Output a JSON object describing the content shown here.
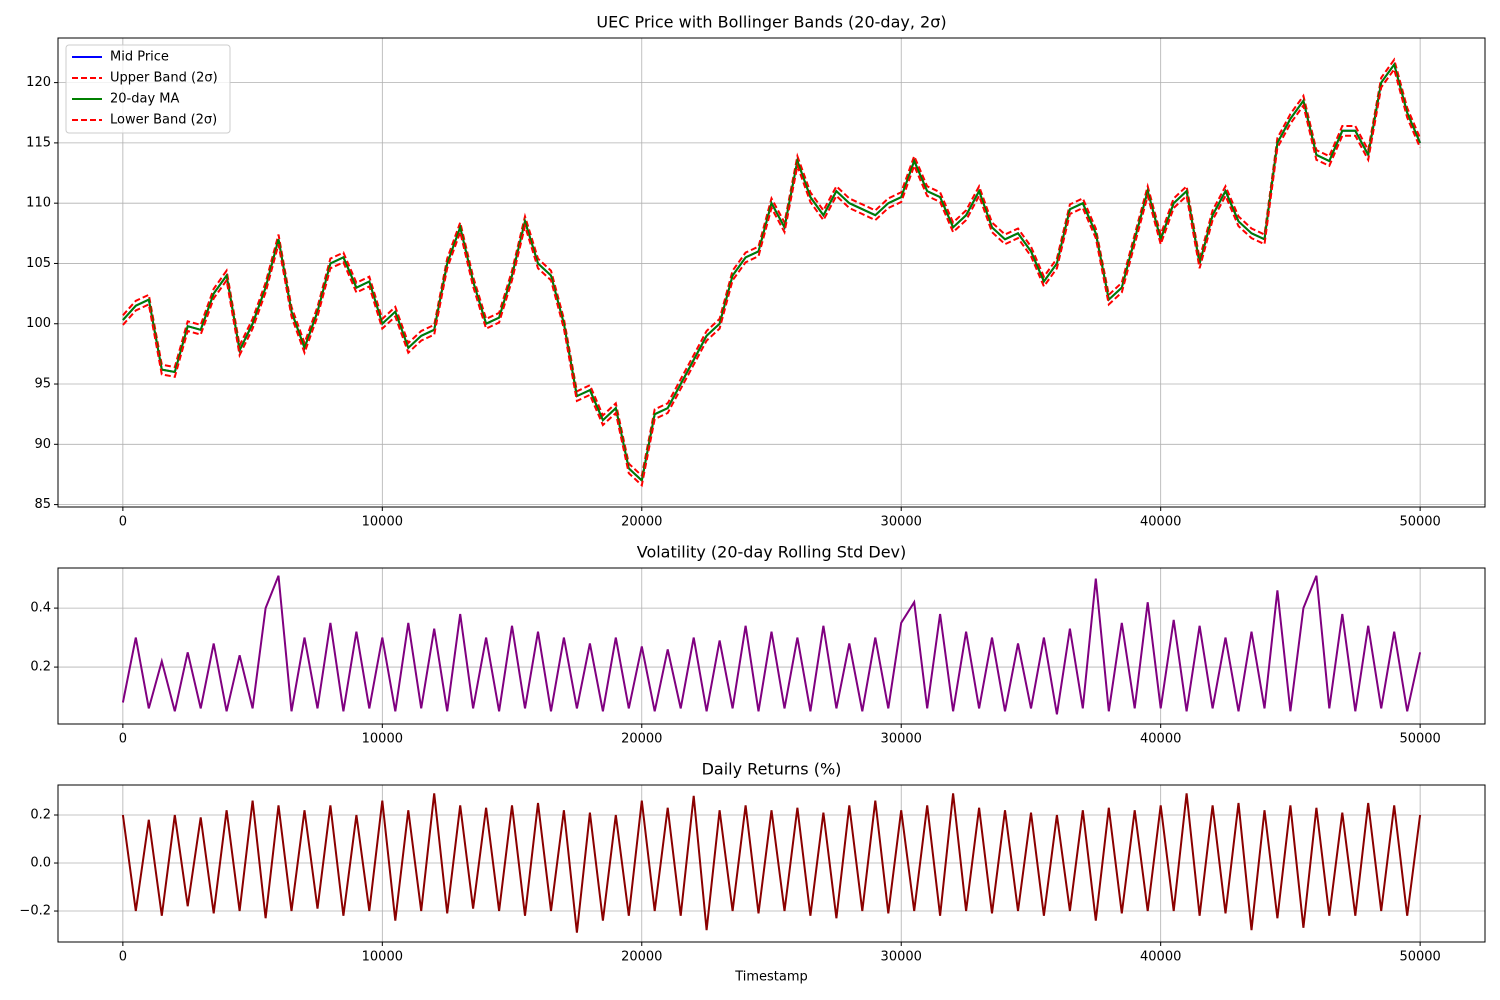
{
  "chart_data": [
    {
      "type": "line",
      "title": "UEC Price with Bollinger Bands (20-day, 2σ)",
      "x": [
        0,
        500,
        1000,
        1500,
        2000,
        2500,
        3000,
        3500,
        4000,
        4500,
        5000,
        5500,
        6000,
        6500,
        7000,
        7500,
        8000,
        8500,
        9000,
        9500,
        10000,
        10500,
        11000,
        11500,
        12000,
        12500,
        13000,
        13500,
        14000,
        14500,
        15000,
        15500,
        16000,
        16500,
        17000,
        17500,
        18000,
        18500,
        19000,
        19500,
        20000,
        20500,
        21000,
        21500,
        22000,
        22500,
        23000,
        23500,
        24000,
        24500,
        25000,
        25500,
        26000,
        26500,
        27000,
        27500,
        28000,
        28500,
        29000,
        29500,
        30000,
        30500,
        31000,
        31500,
        32000,
        32500,
        33000,
        33500,
        34000,
        34500,
        35000,
        35500,
        36000,
        36500,
        37000,
        37500,
        38000,
        38500,
        39000,
        39500,
        40000,
        40500,
        41000,
        41500,
        42000,
        42500,
        43000,
        43500,
        44000,
        44500,
        45000,
        45500,
        46000,
        46500,
        47000,
        47500,
        48000,
        48500,
        49000,
        49500,
        50000
      ],
      "series": [
        {
          "name": "Mid Price",
          "color": "#0000ff",
          "linestyle": "solid",
          "values": [
            100.3,
            101.5,
            102,
            96.2,
            96,
            99.8,
            99.5,
            102.5,
            104,
            97.8,
            100,
            103,
            107,
            101,
            98,
            101,
            105,
            105.5,
            103,
            103.5,
            100,
            101,
            98,
            99,
            99.5,
            105,
            108,
            103.5,
            100,
            100.5,
            104,
            108.5,
            105,
            104,
            100,
            94,
            94.5,
            92,
            93,
            88,
            87,
            92.5,
            93,
            95,
            97,
            99,
            100,
            104,
            105.5,
            106,
            110,
            108,
            113.5,
            110.5,
            109,
            111,
            110,
            109.5,
            109,
            110,
            110.5,
            113.5,
            111,
            110.5,
            108,
            109,
            111,
            108,
            107,
            107.5,
            106,
            103.5,
            105,
            109.5,
            110,
            107.5,
            102,
            103,
            107,
            111,
            107,
            110,
            111,
            105,
            109,
            111,
            108.5,
            107.5,
            107,
            115,
            117,
            118.5,
            114,
            113.5,
            116,
            116,
            114,
            120,
            121.5,
            117.5,
            115
          ]
        },
        {
          "name": "Upper Band (2σ)",
          "color": "#ff0000",
          "linestyle": "dashed",
          "values": [
            100.7,
            101.9,
            102.4,
            96.6,
            96.4,
            100.2,
            99.9,
            102.9,
            104.4,
            98.2,
            100.4,
            103.4,
            107.4,
            101.4,
            98.4,
            101.4,
            105.4,
            105.9,
            103.4,
            103.9,
            100.4,
            101.4,
            98.4,
            99.4,
            99.9,
            105.4,
            108.4,
            103.9,
            100.4,
            100.9,
            104.4,
            108.9,
            105.4,
            104.4,
            100.4,
            94.4,
            94.9,
            92.4,
            93.4,
            88.4,
            87.4,
            92.9,
            93.4,
            95.4,
            97.4,
            99.4,
            100.4,
            104.4,
            105.9,
            106.4,
            110.4,
            108.4,
            113.9,
            110.9,
            109.4,
            111.4,
            110.4,
            109.9,
            109.4,
            110.4,
            110.9,
            113.9,
            111.4,
            110.9,
            108.4,
            109.4,
            111.4,
            108.4,
            107.4,
            107.9,
            106.4,
            103.9,
            105.4,
            109.9,
            110.4,
            107.9,
            102.4,
            103.4,
            107.4,
            111.4,
            107.4,
            110.4,
            111.4,
            105.4,
            109.4,
            111.4,
            108.9,
            107.9,
            107.4,
            115.4,
            117.4,
            118.9,
            114.4,
            113.9,
            116.4,
            116.4,
            114.4,
            120.4,
            121.9,
            117.9,
            115.4
          ]
        },
        {
          "name": "20-day MA",
          "color": "#008000",
          "linestyle": "solid",
          "values": [
            100.3,
            101.5,
            102,
            96.2,
            96,
            99.8,
            99.5,
            102.5,
            104,
            97.8,
            100,
            103,
            107,
            101,
            98,
            101,
            105,
            105.5,
            103,
            103.5,
            100,
            101,
            98,
            99,
            99.5,
            105,
            108,
            103.5,
            100,
            100.5,
            104,
            108.5,
            105,
            104,
            100,
            94,
            94.5,
            92,
            93,
            88,
            87,
            92.5,
            93,
            95,
            97,
            99,
            100,
            104,
            105.5,
            106,
            110,
            108,
            113.5,
            110.5,
            109,
            111,
            110,
            109.5,
            109,
            110,
            110.5,
            113.5,
            111,
            110.5,
            108,
            109,
            111,
            108,
            107,
            107.5,
            106,
            103.5,
            105,
            109.5,
            110,
            107.5,
            102,
            103,
            107,
            111,
            107,
            110,
            111,
            105,
            109,
            111,
            108.5,
            107.5,
            107,
            115,
            117,
            118.5,
            114,
            113.5,
            116,
            116,
            114,
            120,
            121.5,
            117.5,
            115
          ]
        },
        {
          "name": "Lower Band (2σ)",
          "color": "#ff0000",
          "linestyle": "dashed",
          "values": [
            99.9,
            101.1,
            101.6,
            95.8,
            95.6,
            99.4,
            99.1,
            102.1,
            103.6,
            97.4,
            99.6,
            102.6,
            106.6,
            100.6,
            97.6,
            100.6,
            104.6,
            105.1,
            102.6,
            103.1,
            99.6,
            100.6,
            97.6,
            98.6,
            99.1,
            104.6,
            107.6,
            103.1,
            99.6,
            100.1,
            103.6,
            108.1,
            104.6,
            103.6,
            99.6,
            93.6,
            94.1,
            91.6,
            92.6,
            87.6,
            86.6,
            92.1,
            92.6,
            94.6,
            96.6,
            98.6,
            99.6,
            103.6,
            105.1,
            105.6,
            109.6,
            107.6,
            113.1,
            110.1,
            108.6,
            110.6,
            109.6,
            109.1,
            108.6,
            109.6,
            110.1,
            113.1,
            110.6,
            110.1,
            107.6,
            108.6,
            110.6,
            107.6,
            106.6,
            107.1,
            105.6,
            103.1,
            104.6,
            109.1,
            109.6,
            107.1,
            101.6,
            102.6,
            106.6,
            110.6,
            106.6,
            109.6,
            110.6,
            104.6,
            108.6,
            110.6,
            108.1,
            107.1,
            106.6,
            114.6,
            116.6,
            118.1,
            113.6,
            113.1,
            115.6,
            115.6,
            113.6,
            119.6,
            121.1,
            117.1,
            114.6
          ]
        }
      ],
      "xlim": [
        -2500,
        52500
      ],
      "xticks": [
        0,
        10000,
        20000,
        30000,
        40000,
        50000
      ],
      "ylim": [
        84.8,
        123.7
      ],
      "yticks": [
        85,
        90,
        95,
        100,
        105,
        110,
        115,
        120
      ],
      "grid": true,
      "legend": "upper left"
    },
    {
      "type": "line",
      "title": "Volatility (20-day Rolling Std Dev)",
      "x": [
        0,
        500,
        1000,
        1500,
        2000,
        2500,
        3000,
        3500,
        4000,
        4500,
        5000,
        5500,
        6000,
        6500,
        7000,
        7500,
        8000,
        8500,
        9000,
        9500,
        10000,
        10500,
        11000,
        11500,
        12000,
        12500,
        13000,
        13500,
        14000,
        14500,
        15000,
        15500,
        16000,
        16500,
        17000,
        17500,
        18000,
        18500,
        19000,
        19500,
        20000,
        20500,
        21000,
        21500,
        22000,
        22500,
        23000,
        23500,
        24000,
        24500,
        25000,
        25500,
        26000,
        26500,
        27000,
        27500,
        28000,
        28500,
        29000,
        29500,
        30000,
        30500,
        31000,
        31500,
        32000,
        32500,
        33000,
        33500,
        34000,
        34500,
        35000,
        35500,
        36000,
        36500,
        37000,
        37500,
        38000,
        38500,
        39000,
        39500,
        40000,
        40500,
        41000,
        41500,
        42000,
        42500,
        43000,
        43500,
        44000,
        44500,
        45000,
        45500,
        46000,
        46500,
        47000,
        47500,
        48000,
        48500,
        49000,
        49500,
        50000
      ],
      "series": [
        {
          "color": "#800080",
          "values": [
            0.08,
            0.3,
            0.06,
            0.22,
            0.05,
            0.25,
            0.06,
            0.28,
            0.05,
            0.24,
            0.06,
            0.4,
            0.51,
            0.05,
            0.3,
            0.06,
            0.35,
            0.05,
            0.32,
            0.06,
            0.3,
            0.05,
            0.35,
            0.06,
            0.33,
            0.05,
            0.38,
            0.06,
            0.3,
            0.05,
            0.34,
            0.06,
            0.32,
            0.05,
            0.3,
            0.06,
            0.28,
            0.05,
            0.3,
            0.06,
            0.27,
            0.05,
            0.26,
            0.06,
            0.3,
            0.05,
            0.29,
            0.06,
            0.34,
            0.05,
            0.32,
            0.06,
            0.3,
            0.05,
            0.34,
            0.06,
            0.28,
            0.05,
            0.3,
            0.06,
            0.35,
            0.42,
            0.06,
            0.38,
            0.05,
            0.32,
            0.06,
            0.3,
            0.05,
            0.28,
            0.06,
            0.3,
            0.04,
            0.33,
            0.06,
            0.5,
            0.05,
            0.35,
            0.06,
            0.42,
            0.06,
            0.36,
            0.05,
            0.34,
            0.06,
            0.3,
            0.05,
            0.32,
            0.06,
            0.46,
            0.05,
            0.4,
            0.51,
            0.06,
            0.38,
            0.05,
            0.34,
            0.06,
            0.32,
            0.05,
            0.25
          ]
        }
      ],
      "xlim": [
        -2500,
        52500
      ],
      "xticks": [
        0,
        10000,
        20000,
        30000,
        40000,
        50000
      ],
      "ylim": [
        0.007,
        0.536
      ],
      "yticks": [
        0.2,
        0.4
      ],
      "grid": true
    },
    {
      "type": "line",
      "title": "Daily Returns (%)",
      "x_label": "Timestamp",
      "x": [
        0,
        500,
        1000,
        1500,
        2000,
        2500,
        3000,
        3500,
        4000,
        4500,
        5000,
        5500,
        6000,
        6500,
        7000,
        7500,
        8000,
        8500,
        9000,
        9500,
        10000,
        10500,
        11000,
        11500,
        12000,
        12500,
        13000,
        13500,
        14000,
        14500,
        15000,
        15500,
        16000,
        16500,
        17000,
        17500,
        18000,
        18500,
        19000,
        19500,
        20000,
        20500,
        21000,
        21500,
        22000,
        22500,
        23000,
        23500,
        24000,
        24500,
        25000,
        25500,
        26000,
        26500,
        27000,
        27500,
        28000,
        28500,
        29000,
        29500,
        30000,
        30500,
        31000,
        31500,
        32000,
        32500,
        33000,
        33500,
        34000,
        34500,
        35000,
        35500,
        36000,
        36500,
        37000,
        37500,
        38000,
        38500,
        39000,
        39500,
        40000,
        40500,
        41000,
        41500,
        42000,
        42500,
        43000,
        43500,
        44000,
        44500,
        45000,
        45500,
        46000,
        46500,
        47000,
        47500,
        48000,
        48500,
        49000,
        49500,
        50000
      ],
      "series": [
        {
          "color": "#8b0000",
          "values": [
            0.2,
            -0.2,
            0.18,
            -0.22,
            0.2,
            -0.18,
            0.19,
            -0.21,
            0.22,
            -0.2,
            0.26,
            -0.23,
            0.24,
            -0.2,
            0.22,
            -0.19,
            0.24,
            -0.22,
            0.2,
            -0.2,
            0.26,
            -0.24,
            0.22,
            -0.2,
            0.29,
            -0.21,
            0.24,
            -0.19,
            0.23,
            -0.2,
            0.24,
            -0.22,
            0.25,
            -0.2,
            0.22,
            -0.29,
            0.21,
            -0.24,
            0.2,
            -0.22,
            0.26,
            -0.2,
            0.23,
            -0.22,
            0.28,
            -0.28,
            0.22,
            -0.2,
            0.24,
            -0.21,
            0.22,
            -0.2,
            0.23,
            -0.22,
            0.21,
            -0.23,
            0.24,
            -0.2,
            0.26,
            -0.21,
            0.22,
            -0.2,
            0.24,
            -0.22,
            0.29,
            -0.2,
            0.23,
            -0.21,
            0.22,
            -0.2,
            0.21,
            -0.22,
            0.2,
            -0.2,
            0.22,
            -0.24,
            0.23,
            -0.21,
            0.22,
            -0.2,
            0.24,
            -0.2,
            0.29,
            -0.22,
            0.24,
            -0.21,
            0.25,
            -0.28,
            0.22,
            -0.23,
            0.24,
            -0.27,
            0.23,
            -0.22,
            0.21,
            -0.22,
            0.25,
            -0.2,
            0.24,
            -0.22,
            0.2
          ]
        }
      ],
      "xlim": [
        -2500,
        52500
      ],
      "xticks": [
        0,
        10000,
        20000,
        30000,
        40000,
        50000
      ],
      "ylim": [
        -0.329,
        0.325
      ],
      "yticks": [
        {
          "value": -0.2,
          "label": "−0.2"
        },
        {
          "value": 0,
          "label": "0.0"
        },
        0.2
      ],
      "grid": true
    }
  ]
}
